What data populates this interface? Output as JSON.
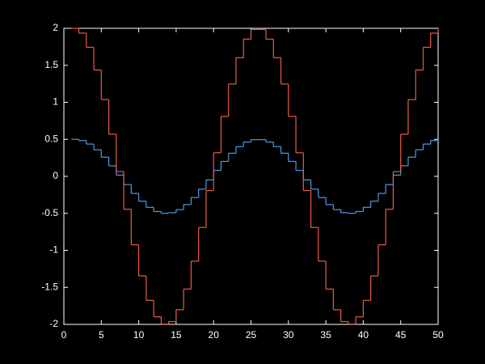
{
  "chart_data": {
    "type": "stairs",
    "x": [
      1,
      2,
      3,
      4,
      5,
      6,
      7,
      8,
      9,
      10,
      11,
      12,
      13,
      14,
      15,
      16,
      17,
      18,
      19,
      20,
      21,
      22,
      23,
      24,
      25,
      26,
      27,
      28,
      29,
      30,
      31,
      32,
      33,
      34,
      35,
      36,
      37,
      38,
      39,
      40,
      41,
      42,
      43,
      44,
      45,
      46,
      47,
      48,
      49,
      50
    ],
    "series": [
      {
        "color": "#4d9be6",
        "values": [
          0.5,
          0.484,
          0.436,
          0.359,
          0.259,
          0.142,
          0.016,
          -0.111,
          -0.231,
          -0.336,
          -0.419,
          -0.475,
          -0.499,
          -0.491,
          -0.45,
          -0.381,
          -0.286,
          -0.173,
          -0.048,
          0.08,
          0.202,
          0.312,
          0.401,
          0.463,
          0.496,
          0.496,
          0.463,
          0.401,
          0.312,
          0.202,
          0.08,
          -0.048,
          -0.173,
          -0.286,
          -0.381,
          -0.45,
          -0.491,
          -0.499,
          -0.475,
          -0.419,
          -0.336,
          -0.231,
          -0.111,
          0.016,
          0.142,
          0.259,
          0.359,
          0.436,
          0.484,
          0.5
        ]
      },
      {
        "color": "#ee5a44",
        "values": [
          2,
          1.935,
          1.743,
          1.437,
          1.037,
          0.569,
          0.064,
          -0.445,
          -0.925,
          -1.345,
          -1.676,
          -1.898,
          -1.996,
          -1.963,
          -1.802,
          -1.523,
          -1.146,
          -0.691,
          -0.192,
          0.319,
          0.81,
          1.247,
          1.603,
          1.854,
          1.984,
          1.984,
          1.854,
          1.603,
          1.247,
          0.81,
          0.319,
          -0.192,
          -0.691,
          -1.146,
          -1.523,
          -1.802,
          -1.963,
          -1.996,
          -1.898,
          -1.676,
          -1.345,
          -0.925,
          -0.445,
          0.064,
          0.569,
          1.037,
          1.437,
          1.743,
          1.935,
          2
        ]
      }
    ],
    "xlim": [
      0,
      50
    ],
    "xticks": [
      0,
      5,
      10,
      15,
      20,
      25,
      30,
      35,
      40,
      45,
      50
    ],
    "ylim": [
      -2,
      2
    ],
    "yticks": [
      -2,
      -1.5,
      -1,
      -0.5,
      0,
      0.5,
      1,
      1.5,
      2
    ],
    "grid": false
  }
}
